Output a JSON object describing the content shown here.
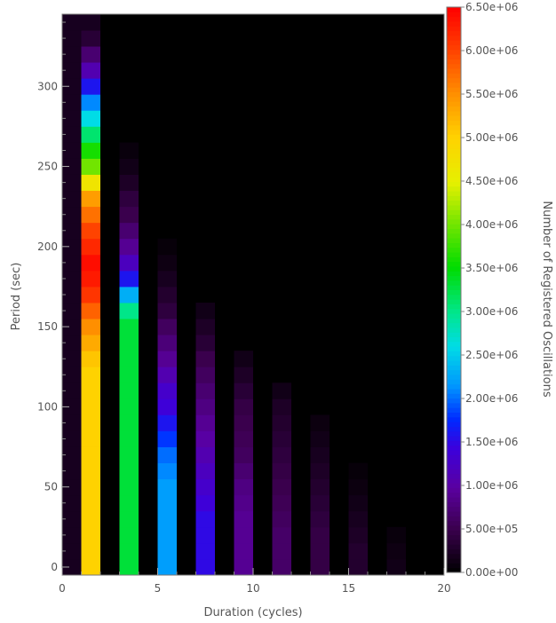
{
  "chart_data": {
    "type": "heatmap",
    "title": "",
    "xlabel": "Duration (cycles)",
    "ylabel": "Period (sec)",
    "colorbar_label": "Number of Registered Oscillations",
    "xlim": [
      0,
      20
    ],
    "ylim": [
      -5,
      345
    ],
    "x_ticks": [
      0,
      5,
      10,
      15,
      20
    ],
    "y_ticks": [
      0,
      50,
      100,
      150,
      200,
      250,
      300
    ],
    "colorbar_range": [
      0,
      6500000
    ],
    "colorbar_ticks": [
      "0.00e+00",
      "5.00e+05",
      "1.00e+06",
      "1.50e+06",
      "2.00e+06",
      "2.50e+06",
      "3.00e+06",
      "3.50e+06",
      "4.00e+06",
      "4.50e+06",
      "5.00e+06",
      "5.50e+06",
      "6.00e+06",
      "6.50e+06"
    ],
    "colormap": "rainbow",
    "background_color": "#000000",
    "bin_height_sec": 10,
    "columns": [
      {
        "x_start": 0,
        "x_end": 1,
        "values": [
          200000,
          200000,
          200000,
          200000,
          200000,
          200000,
          200000,
          200000,
          200000,
          200000,
          200000,
          200000,
          200000,
          200000,
          200000,
          200000,
          200000,
          200000,
          200000,
          200000,
          200000,
          200000,
          200000,
          200000,
          200000,
          200000,
          200000,
          200000,
          200000,
          200000,
          200000,
          200000,
          200000,
          200000,
          200000
        ]
      },
      {
        "x_start": 1,
        "x_end": 2,
        "values": [
          5000000,
          5000000,
          5000000,
          5000000,
          5000000,
          5000000,
          5000000,
          5000000,
          5000000,
          5000000,
          5000000,
          5000000,
          5000000,
          5100000,
          5300000,
          5500000,
          5800000,
          6100000,
          6300000,
          6400000,
          6200000,
          6000000,
          5700000,
          5400000,
          4700000,
          4000000,
          3600000,
          3100000,
          2600000,
          2100000,
          1600000,
          1100000,
          700000,
          350000,
          200000
        ]
      },
      {
        "x_start": 3,
        "x_end": 4,
        "values": [
          3300000,
          3300000,
          3300000,
          3300000,
          3300000,
          3300000,
          3300000,
          3300000,
          3300000,
          3300000,
          3300000,
          3300000,
          3300000,
          3300000,
          3300000,
          3300000,
          3000000,
          2300000,
          1600000,
          1200000,
          900000,
          700000,
          500000,
          400000,
          250000,
          150000,
          80000
        ]
      },
      {
        "x_start": 5,
        "x_end": 6,
        "values": [
          2200000,
          2200000,
          2200000,
          2200000,
          2200000,
          2200000,
          2100000,
          2000000,
          1800000,
          1600000,
          1400000,
          1300000,
          1100000,
          900000,
          750000,
          600000,
          400000,
          300000,
          200000,
          120000,
          60000
        ]
      },
      {
        "x_start": 7,
        "x_end": 8,
        "values": [
          1500000,
          1500000,
          1500000,
          1500000,
          1400000,
          1300000,
          1200000,
          1100000,
          1000000,
          900000,
          800000,
          700000,
          600000,
          500000,
          350000,
          250000,
          150000
        ]
      },
      {
        "x_start": 9,
        "x_end": 10,
        "values": [
          900000,
          900000,
          900000,
          900000,
          850000,
          800000,
          700000,
          600000,
          550000,
          500000,
          450000,
          350000,
          250000,
          150000
        ]
      },
      {
        "x_start": 11,
        "x_end": 12,
        "values": [
          650000,
          650000,
          650000,
          600000,
          550000,
          500000,
          450000,
          400000,
          350000,
          300000,
          250000,
          150000
        ]
      },
      {
        "x_start": 13,
        "x_end": 14,
        "values": [
          450000,
          450000,
          450000,
          400000,
          350000,
          300000,
          250000,
          200000,
          150000,
          100000
        ]
      },
      {
        "x_start": 15,
        "x_end": 16,
        "values": [
          300000,
          300000,
          250000,
          200000,
          150000,
          100000,
          60000
        ]
      },
      {
        "x_start": 17,
        "x_end": 18,
        "values": [
          150000,
          120000,
          80000
        ]
      }
    ]
  }
}
